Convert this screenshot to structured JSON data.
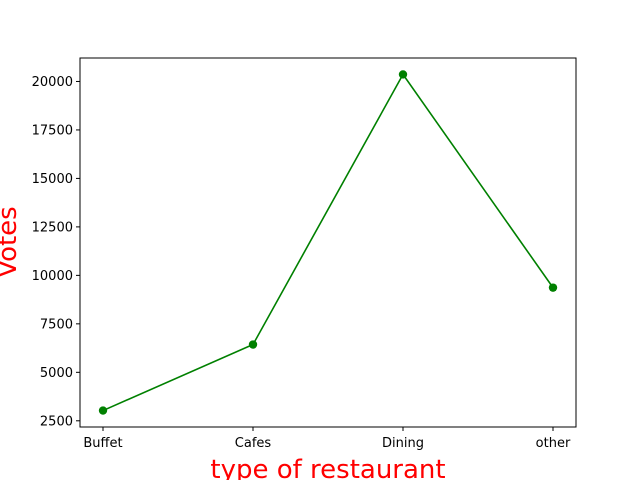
{
  "chart_data": {
    "type": "line",
    "categories": [
      "Buffet",
      "Cafes",
      "Dining",
      "other"
    ],
    "series": [
      {
        "values": [
          3028,
          6434,
          20363,
          9367
        ],
        "color": "#008000",
        "marker": "circle"
      }
    ],
    "title": "",
    "xlabel": "type of restaurant",
    "ylabel": "Votes",
    "label_color": "#ff0000",
    "ylim": [
      2180,
      21210
    ],
    "yticks": [
      2500,
      5000,
      7500,
      10000,
      12500,
      15000,
      17500,
      20000
    ],
    "ytick_labels": [
      "2500",
      "5000",
      "7500",
      "10000",
      "12500",
      "15000",
      "17500",
      "20000"
    ],
    "grid": false,
    "legend": "none"
  }
}
